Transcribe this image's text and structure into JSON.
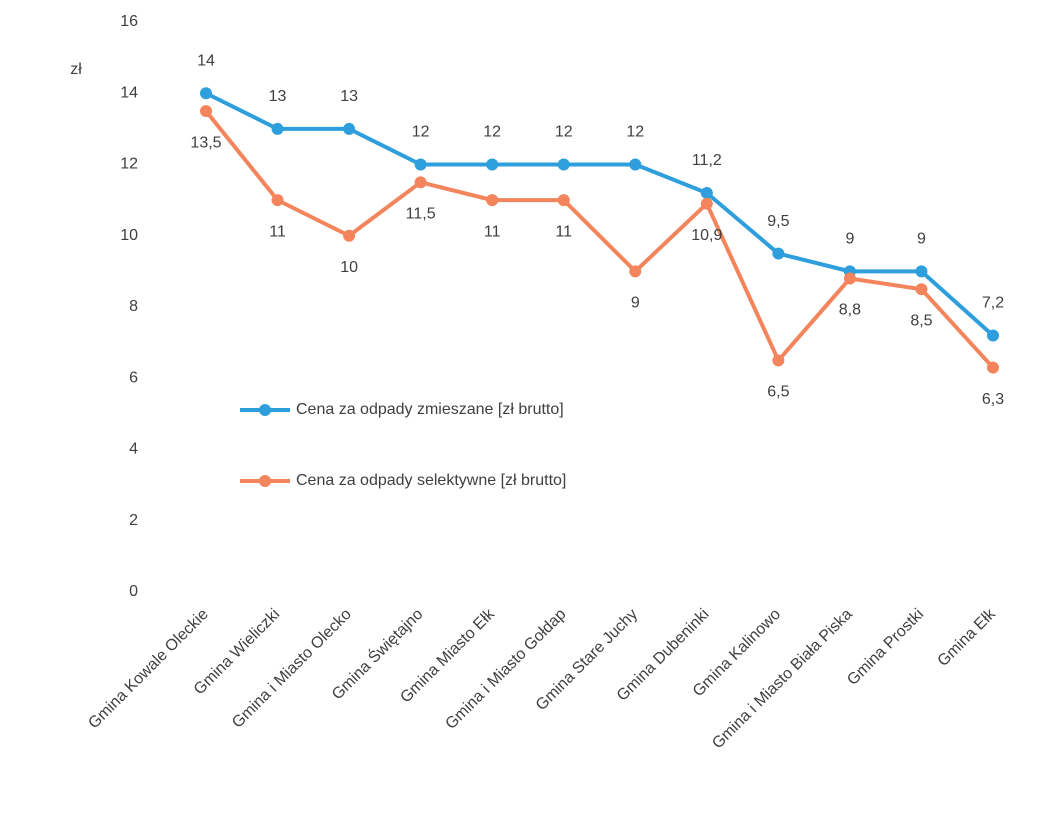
{
  "chart_data": {
    "type": "line",
    "y_label": "zł",
    "categories": [
      "Gmina Kowale Oleckie",
      "Gmina Wieliczki",
      "Gmina i Miasto Olecko",
      "Gmina Świętajno",
      "Gmina Miasto Ełk",
      "Gmina i Miasto Gołdap",
      "Gmina Stare Juchy",
      "Gmina Dubeninki",
      "Gmina Kalinowo",
      "Gmina i Miasto Biała Piska",
      "Gmina Prostki",
      "Gmina Ełk"
    ],
    "series": [
      {
        "name": "Cena za odpady zmieszane [zł brutto]",
        "color": "#2e9fdc",
        "values": [
          14,
          13,
          13,
          12,
          12,
          12,
          12,
          11.2,
          9.5,
          9,
          9,
          7.2
        ],
        "value_labels": [
          "14",
          "13",
          "13",
          "12",
          "12",
          "12",
          "12",
          "11,2",
          "9,5",
          "9",
          "9",
          "7,2"
        ]
      },
      {
        "name": "Cena za odpady selektywne [zł brutto]",
        "color": "#f3845c",
        "values": [
          13.5,
          11,
          10,
          11.5,
          11,
          11,
          9,
          10.9,
          6.5,
          8.8,
          8.5,
          6.3
        ],
        "value_labels": [
          "13,5",
          "11",
          "10",
          "11,5",
          "11",
          "11",
          "9",
          "10,9",
          "6,5",
          "8,8",
          "8,5",
          "6,3"
        ]
      }
    ],
    "ylim": [
      0,
      16
    ],
    "yticks": [
      0,
      2,
      4,
      6,
      8,
      10,
      12,
      14,
      16
    ],
    "grid": false
  }
}
